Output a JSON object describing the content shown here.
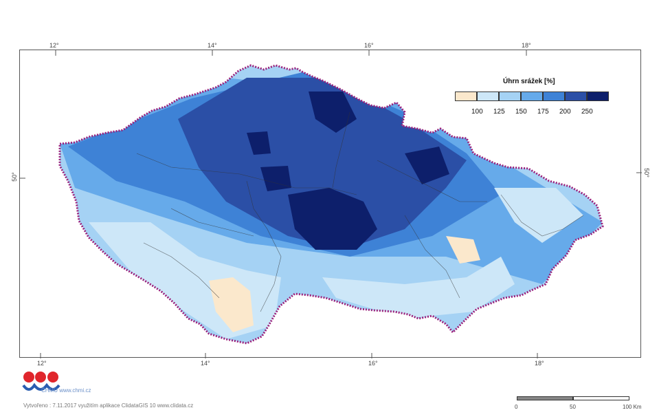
{
  "legend": {
    "title": "Úhrn srážek [%]",
    "classes": [
      {
        "label": "",
        "color": "#fbe8cc"
      },
      {
        "label": "100",
        "color": "#cde7f8"
      },
      {
        "label": "125",
        "color": "#a5d2f4"
      },
      {
        "label": "150",
        "color": "#66aaea"
      },
      {
        "label": "175",
        "color": "#3e82d6"
      },
      {
        "label": "200",
        "color": "#2b4fa6"
      },
      {
        "label": "250",
        "color": "#0d1f6b"
      }
    ]
  },
  "graticule": {
    "top_labels": [
      "12°",
      "14°",
      "16°",
      "18°"
    ],
    "bottom_labels": [
      "12°",
      "14°",
      "16°",
      "18°"
    ],
    "left_label": "50°",
    "right_label": "50°"
  },
  "logo": {
    "text": "ČHMÚ www.chmi.cz"
  },
  "footer": {
    "text": "Vytvořeno : 7.11.2017 využitím aplikace ClidataGIS 10 www.clidata.cz"
  },
  "scale": {
    "labels": [
      "0",
      "50",
      "100 Km"
    ]
  },
  "colors": {
    "border": "#9b1f7a",
    "rivers": "#333333"
  }
}
